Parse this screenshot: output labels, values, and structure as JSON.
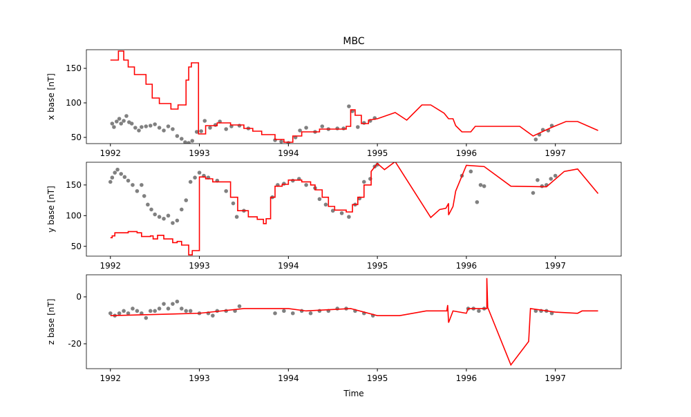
{
  "chart_data": [
    {
      "type": "line",
      "title": "MBC",
      "ylabel": "x base [nT]",
      "xlim": [
        1991.73,
        1997.74
      ],
      "ylim": [
        41,
        177
      ],
      "xticks": [
        1992,
        1993,
        1994,
        1995,
        1996,
        1997
      ],
      "yticks": [
        50,
        100,
        150
      ],
      "series": [
        {
          "kind": "scatter",
          "color": "#808080",
          "x": [
            1992.02,
            1992.04,
            1992.07,
            1992.1,
            1992.12,
            1992.15,
            1992.18,
            1992.21,
            1992.24,
            1992.28,
            1992.32,
            1992.35,
            1992.4,
            1992.45,
            1992.5,
            1992.55,
            1992.6,
            1992.65,
            1992.7,
            1992.75,
            1992.8,
            1992.84,
            1992.88,
            1992.92,
            1992.97,
            1993.02,
            1993.06,
            1993.12,
            1993.18,
            1993.23,
            1993.3,
            1993.36,
            1993.45,
            1993.55,
            1993.85,
            1993.92,
            1994.0,
            1994.08,
            1994.13,
            1994.2,
            1994.3,
            1994.38,
            1994.45,
            1994.55,
            1994.62,
            1994.68,
            1994.72,
            1994.78,
            1994.85,
            1994.92,
            1994.97,
            1996.78,
            1996.82,
            1996.86,
            1996.92,
            1996.96
          ],
          "values": [
            70,
            65,
            73,
            77,
            70,
            74,
            81,
            72,
            70,
            64,
            60,
            65,
            66,
            67,
            69,
            64,
            60,
            66,
            62,
            52,
            48,
            43,
            42,
            45,
            58,
            59,
            74,
            64,
            68,
            73,
            62,
            66,
            67,
            63,
            46,
            44,
            42,
            50,
            60,
            64,
            58,
            66,
            62,
            63,
            63,
            95,
            88,
            65,
            71,
            74,
            78,
            47,
            54,
            61,
            60,
            67
          ]
        },
        {
          "kind": "line",
          "color": "#ff0000",
          "x": [
            1992.0,
            1992.09,
            1992.09,
            1992.15,
            1992.15,
            1992.2,
            1992.2,
            1992.27,
            1992.27,
            1992.4,
            1992.4,
            1992.47,
            1992.47,
            1992.55,
            1992.55,
            1992.68,
            1992.68,
            1992.76,
            1992.76,
            1992.85,
            1992.85,
            1992.88,
            1992.88,
            1992.91,
            1992.91,
            1992.99,
            1992.99,
            1993.07,
            1993.07,
            1993.2,
            1993.2,
            1993.35,
            1993.35,
            1993.5,
            1993.5,
            1993.6,
            1993.6,
            1993.7,
            1993.7,
            1993.85,
            1993.85,
            1993.95,
            1993.95,
            1994.05,
            1994.05,
            1994.15,
            1994.15,
            1994.35,
            1994.35,
            1994.65,
            1994.65,
            1994.7,
            1994.7,
            1994.75,
            1994.75,
            1994.82,
            1994.82,
            1994.9,
            1994.9,
            1995.0,
            1995.2,
            1995.33,
            1995.5,
            1995.6,
            1995.75,
            1995.8,
            1995.85,
            1995.88,
            1995.95,
            1996.05,
            1996.1,
            1996.6,
            1996.75,
            1996.95,
            1997.12,
            1997.25,
            1997.48
          ],
          "values": [
            162,
            162,
            175,
            175,
            162,
            162,
            152,
            152,
            141,
            141,
            127,
            127,
            107,
            107,
            99,
            99,
            91,
            91,
            97,
            97,
            133,
            133,
            152,
            152,
            158,
            158,
            55,
            55,
            67,
            67,
            71,
            71,
            68,
            68,
            63,
            63,
            59,
            59,
            54,
            54,
            47,
            47,
            43,
            43,
            52,
            52,
            58,
            58,
            62,
            62,
            66,
            66,
            90,
            90,
            82,
            82,
            70,
            70,
            75,
            77,
            86,
            75,
            97,
            97,
            85,
            77,
            77,
            67,
            58,
            58,
            66,
            66,
            52,
            64,
            73,
            73,
            60
          ]
        }
      ]
    },
    {
      "type": "line",
      "ylabel": "y base [nT]",
      "xlim": [
        1991.73,
        1997.74
      ],
      "ylim": [
        34,
        187
      ],
      "xticks": [
        1992,
        1993,
        1994,
        1995,
        1996,
        1997
      ],
      "yticks": [
        50,
        100,
        150
      ],
      "series": [
        {
          "kind": "scatter",
          "color": "#808080",
          "x": [
            1992.0,
            1992.02,
            1992.05,
            1992.08,
            1992.12,
            1992.16,
            1992.2,
            1992.25,
            1992.3,
            1992.35,
            1992.38,
            1992.42,
            1992.46,
            1992.5,
            1992.55,
            1992.6,
            1992.65,
            1992.7,
            1992.75,
            1992.8,
            1992.85,
            1992.9,
            1992.95,
            1993.0,
            1993.05,
            1993.1,
            1993.2,
            1993.3,
            1993.38,
            1993.42,
            1993.5,
            1993.82,
            1993.88,
            1993.95,
            1994.05,
            1994.12,
            1994.2,
            1994.3,
            1994.35,
            1994.42,
            1994.5,
            1994.6,
            1994.68,
            1994.75,
            1994.8,
            1994.85,
            1994.92,
            1994.97,
            1995.0,
            1995.95,
            1996.05,
            1996.12,
            1996.16,
            1996.2,
            1996.75,
            1996.8,
            1996.85,
            1996.9,
            1996.95,
            1997.0
          ],
          "values": [
            155,
            162,
            170,
            175,
            168,
            163,
            157,
            150,
            140,
            150,
            132,
            118,
            110,
            102,
            98,
            95,
            100,
            88,
            92,
            110,
            125,
            155,
            162,
            170,
            165,
            162,
            157,
            140,
            120,
            98,
            108,
            130,
            150,
            152,
            157,
            160,
            150,
            145,
            127,
            118,
            108,
            104,
            98,
            118,
            128,
            155,
            160,
            180,
            183,
            165,
            172,
            122,
            150,
            148,
            137,
            158,
            148,
            150,
            160,
            165
          ]
        },
        {
          "kind": "line",
          "color": "#ff0000",
          "x": [
            1992.0,
            1992.02,
            1992.02,
            1992.05,
            1992.05,
            1992.2,
            1992.2,
            1992.3,
            1992.3,
            1992.35,
            1992.35,
            1992.45,
            1992.45,
            1992.48,
            1992.48,
            1992.53,
            1992.53,
            1992.6,
            1992.6,
            1992.7,
            1992.7,
            1992.75,
            1992.75,
            1992.8,
            1992.8,
            1992.88,
            1992.88,
            1992.92,
            1992.92,
            1993.0,
            1993.0,
            1993.07,
            1993.07,
            1993.15,
            1993.15,
            1993.35,
            1993.35,
            1993.43,
            1993.43,
            1993.55,
            1993.55,
            1993.65,
            1993.65,
            1993.72,
            1993.72,
            1993.75,
            1993.75,
            1993.8,
            1993.8,
            1993.85,
            1993.85,
            1993.93,
            1993.93,
            1994.0,
            1994.0,
            1994.15,
            1994.15,
            1994.25,
            1994.25,
            1994.3,
            1994.3,
            1994.38,
            1994.38,
            1994.45,
            1994.45,
            1994.52,
            1994.52,
            1994.65,
            1994.65,
            1994.72,
            1994.72,
            1994.78,
            1994.78,
            1994.85,
            1994.85,
            1994.93,
            1994.93,
            1995.0,
            1995.08,
            1995.2,
            1995.6,
            1995.7,
            1995.77,
            1995.8,
            1995.8,
            1995.85,
            1995.88,
            1996.0,
            1996.2,
            1996.5,
            1996.9,
            1997.1,
            1997.25,
            1997.48
          ],
          "values": [
            64,
            64,
            67,
            67,
            72,
            72,
            74,
            74,
            72,
            72,
            66,
            66,
            67,
            67,
            62,
            62,
            68,
            68,
            62,
            62,
            56,
            56,
            58,
            58,
            52,
            52,
            36,
            36,
            43,
            43,
            163,
            163,
            160,
            160,
            155,
            155,
            130,
            130,
            108,
            108,
            98,
            98,
            94,
            94,
            87,
            87,
            95,
            95,
            130,
            130,
            148,
            148,
            151,
            151,
            158,
            158,
            155,
            155,
            150,
            150,
            142,
            142,
            130,
            130,
            115,
            115,
            109,
            109,
            106,
            106,
            118,
            118,
            130,
            130,
            150,
            150,
            172,
            185,
            175,
            188,
            97,
            110,
            112,
            120,
            101,
            115,
            140,
            182,
            180,
            148,
            147,
            172,
            176,
            136
          ]
        }
      ]
    },
    {
      "type": "line",
      "ylabel": "z base [nT]",
      "xlabel": "Time",
      "xlim": [
        1991.73,
        1997.74
      ],
      "ylim": [
        -30.6,
        9.4
      ],
      "xticks": [
        1992,
        1993,
        1994,
        1995,
        1996,
        1997
      ],
      "yticks": [
        -20,
        0
      ],
      "series": [
        {
          "kind": "scatter",
          "color": "#808080",
          "x": [
            1992.0,
            1992.05,
            1992.1,
            1992.15,
            1992.2,
            1992.25,
            1992.3,
            1992.35,
            1992.4,
            1992.45,
            1992.5,
            1992.55,
            1992.6,
            1992.65,
            1992.7,
            1992.75,
            1992.8,
            1992.85,
            1992.9,
            1993.0,
            1993.1,
            1993.15,
            1993.2,
            1993.3,
            1993.4,
            1993.45,
            1993.85,
            1993.95,
            1994.05,
            1994.15,
            1994.25,
            1994.35,
            1994.45,
            1994.55,
            1994.65,
            1994.75,
            1994.85,
            1994.95,
            1996.02,
            1996.08,
            1996.14,
            1996.2,
            1996.78,
            1996.84,
            1996.9,
            1996.96
          ],
          "values": [
            -7,
            -8,
            -7,
            -6,
            -7,
            -5,
            -6,
            -7,
            -9,
            -6,
            -6,
            -5,
            -3,
            -5,
            -3,
            -2,
            -5,
            -6,
            -6,
            -7,
            -7,
            -8,
            -6,
            -6,
            -6,
            -4,
            -7,
            -6,
            -7,
            -6,
            -7,
            -6,
            -6,
            -5,
            -5,
            -6,
            -7,
            -8,
            -5,
            -5,
            -6,
            -5,
            -6,
            -6,
            -6,
            -7
          ]
        },
        {
          "kind": "line",
          "color": "#ff0000",
          "x": [
            1992.0,
            1993.0,
            1993.5,
            1994.0,
            1994.2,
            1994.7,
            1995.0,
            1995.25,
            1995.55,
            1995.78,
            1995.79,
            1995.8,
            1995.85,
            1996.0,
            1996.02,
            1996.23,
            1996.23,
            1996.24,
            1996.5,
            1996.7,
            1996.72,
            1997.0,
            1997.25,
            1997.3,
            1997.48
          ],
          "values": [
            -8,
            -7,
            -5,
            -5,
            -6,
            -5,
            -8,
            -8,
            -6,
            -6,
            -3.5,
            -11,
            -6,
            -7,
            -5,
            -5,
            8,
            -4.5,
            -29,
            -19,
            -5,
            -6.5,
            -7,
            -6,
            -6
          ]
        }
      ]
    }
  ]
}
